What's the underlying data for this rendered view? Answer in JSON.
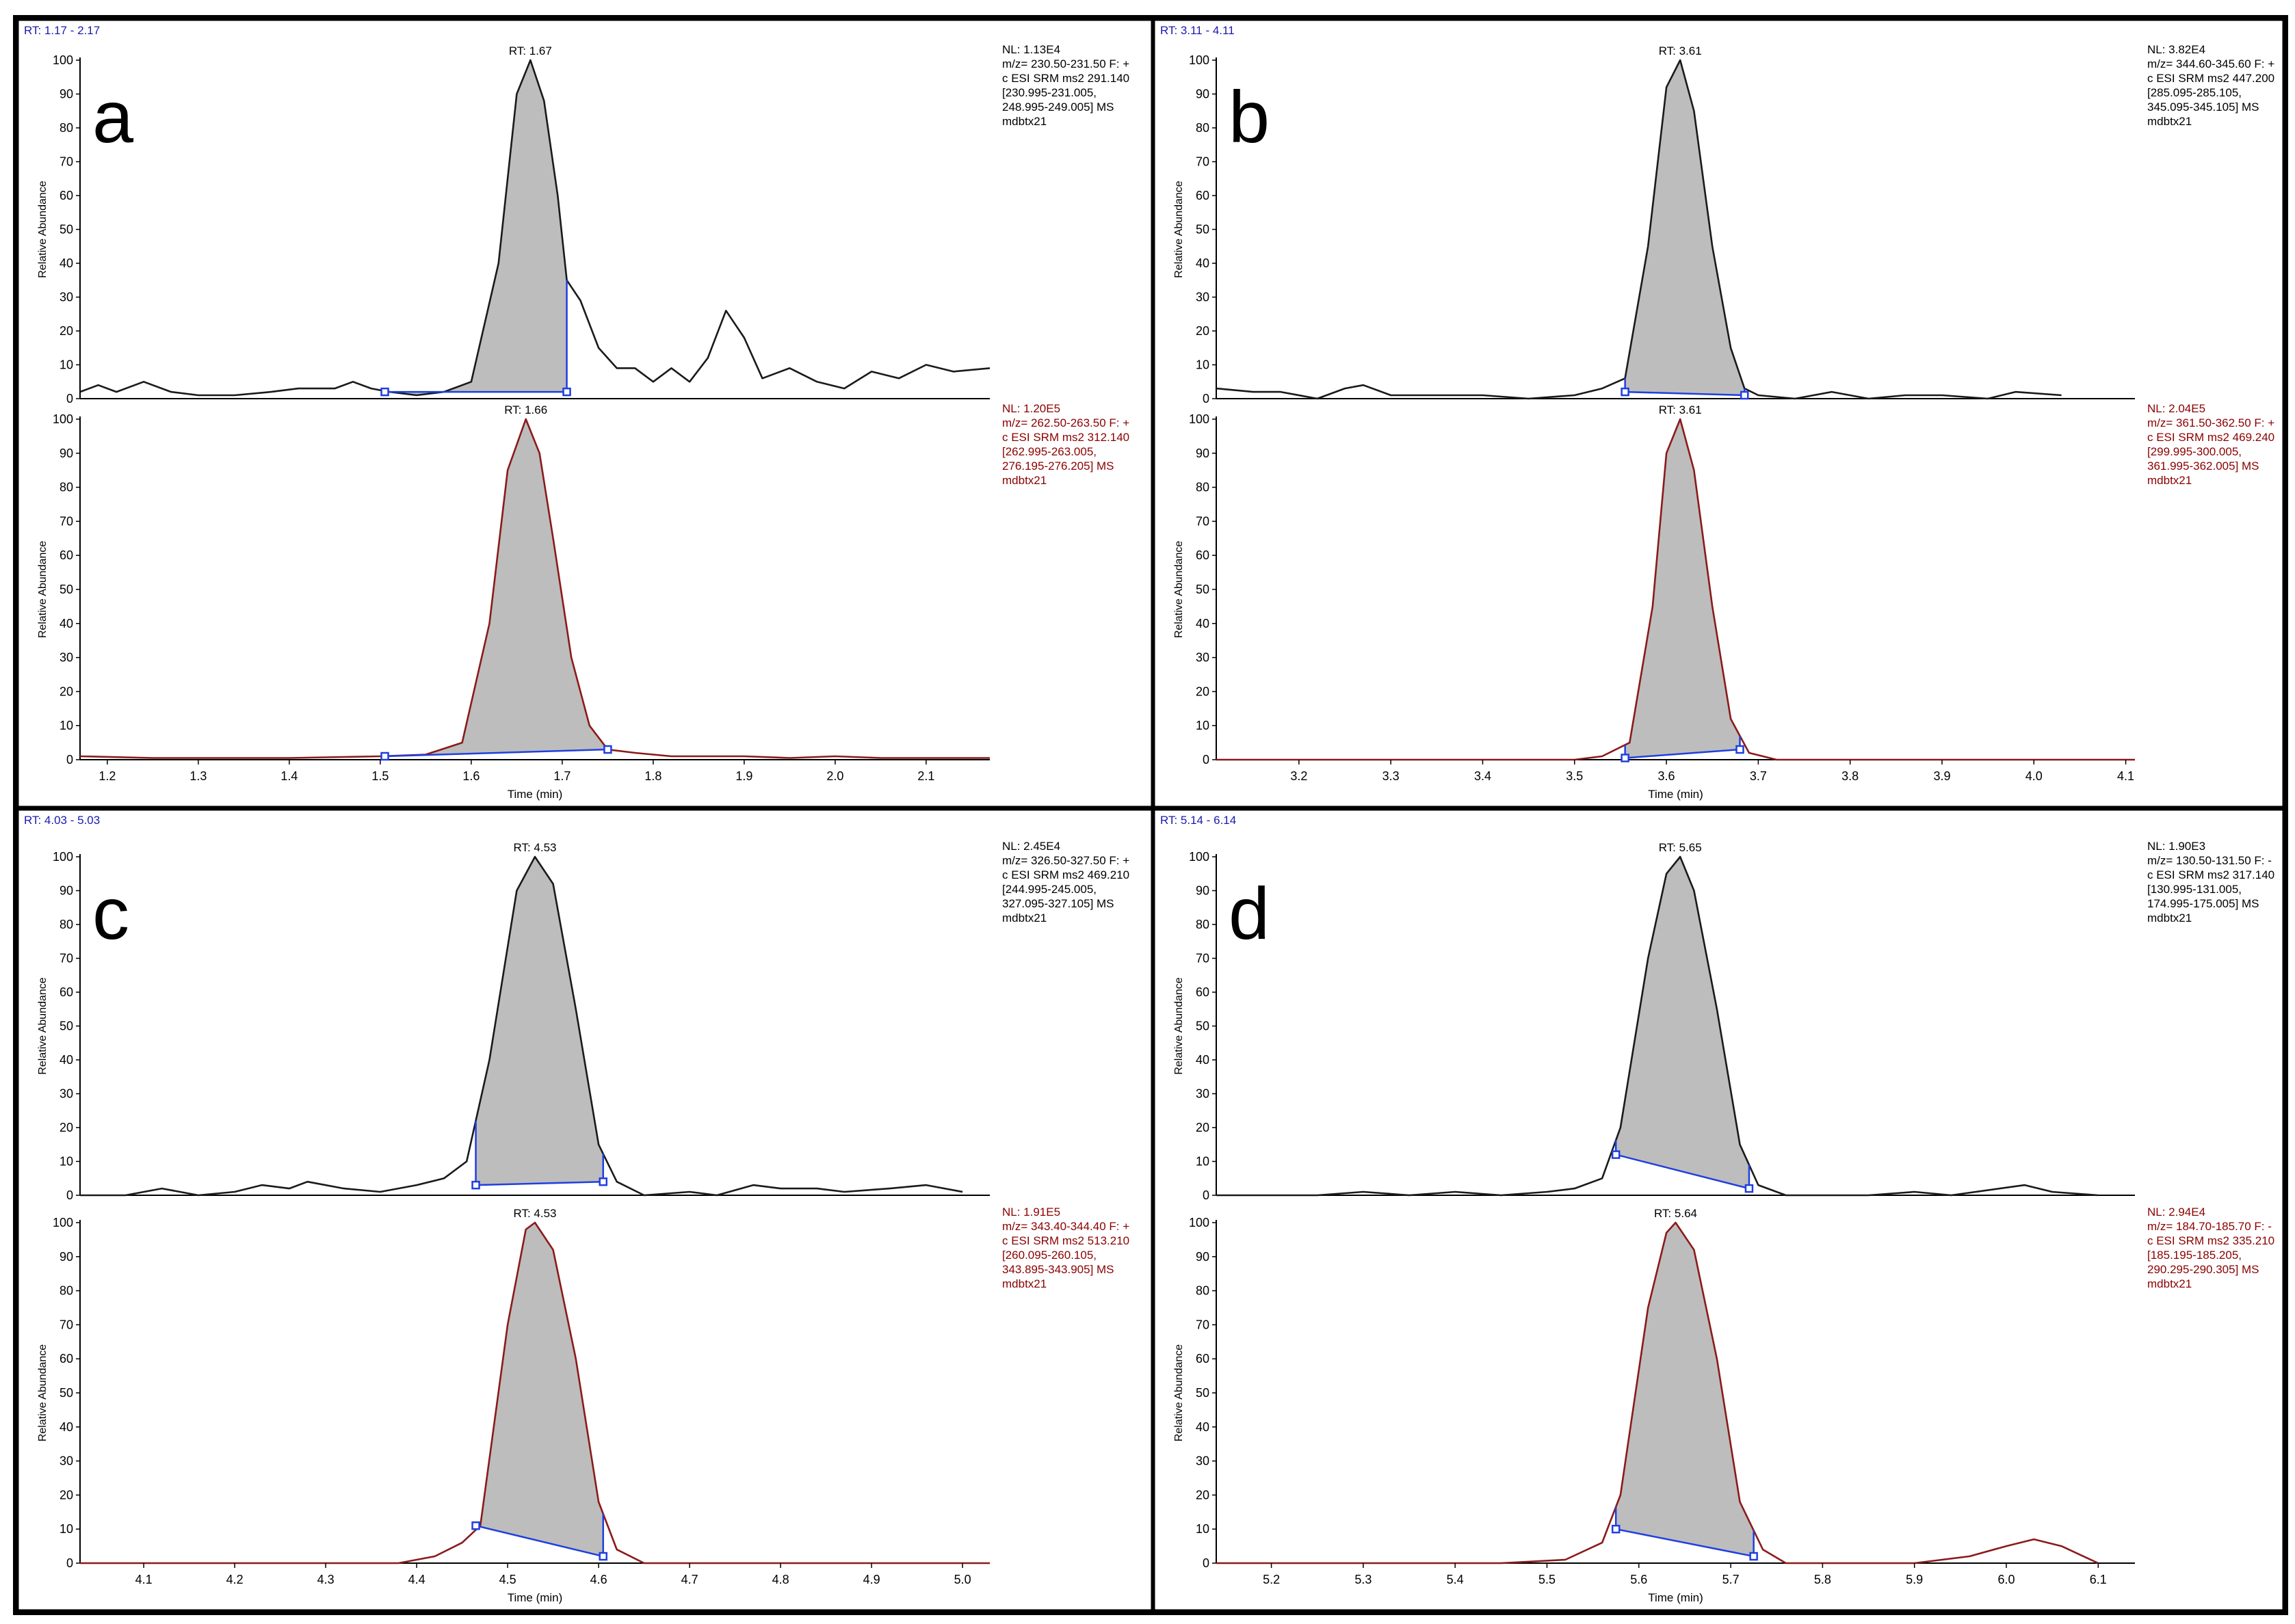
{
  "colors": {
    "black_trace": "#1a1a1a",
    "red_trace": "#8b1a1a",
    "red_text": "#8b0000",
    "blue_baseline": "#1f3fe0",
    "blue_text": "#1a1ab0",
    "fill": "#bdbdbd"
  },
  "chart_data": [
    {
      "type": "line",
      "letter": "a",
      "rt_range": "RT: 1.17 - 2.17",
      "xlabel": "Time (min)",
      "ylabel": "Relative Abundance",
      "xlim": [
        1.17,
        2.17
      ],
      "xticks": [
        "1.2",
        "1.3",
        "1.4",
        "1.5",
        "1.6",
        "1.7",
        "1.8",
        "1.9",
        "2.0",
        "2.1"
      ],
      "ylim": [
        0,
        100
      ],
      "yticks": [
        "0",
        "10",
        "20",
        "30",
        "40",
        "50",
        "60",
        "70",
        "80",
        "90",
        "100"
      ],
      "traces": [
        {
          "color": "black",
          "rt_label": "RT: 1.67",
          "info": [
            "NL: 1.13E4",
            "m/z= 230.50-231.50 F: +",
            "c ESI SRM ms2 291.140",
            "[230.995-231.005,",
            "248.995-249.005]  MS",
            "mdbtx21"
          ],
          "peak": {
            "rt": 1.665,
            "sigma": 0.036,
            "tail": 0.02,
            "integ_start": 1.505,
            "integ_end": 1.705,
            "base_start": 2,
            "base_end": 2
          },
          "points": [
            [
              1.17,
              2
            ],
            [
              1.19,
              4
            ],
            [
              1.21,
              2
            ],
            [
              1.24,
              5
            ],
            [
              1.27,
              2
            ],
            [
              1.3,
              1
            ],
            [
              1.34,
              1
            ],
            [
              1.38,
              2
            ],
            [
              1.41,
              3
            ],
            [
              1.45,
              3
            ],
            [
              1.47,
              5
            ],
            [
              1.49,
              3
            ],
            [
              1.51,
              2
            ],
            [
              1.54,
              1
            ],
            [
              1.57,
              2
            ],
            [
              1.6,
              5
            ],
            [
              1.63,
              40
            ],
            [
              1.65,
              90
            ],
            [
              1.665,
              100
            ],
            [
              1.68,
              88
            ],
            [
              1.695,
              60
            ],
            [
              1.705,
              35
            ],
            [
              1.72,
              29
            ],
            [
              1.74,
              15
            ],
            [
              1.76,
              9
            ],
            [
              1.78,
              9
            ],
            [
              1.8,
              5
            ],
            [
              1.82,
              9
            ],
            [
              1.84,
              5
            ],
            [
              1.86,
              12
            ],
            [
              1.88,
              26
            ],
            [
              1.9,
              18
            ],
            [
              1.92,
              6
            ],
            [
              1.95,
              9
            ],
            [
              1.98,
              5
            ],
            [
              2.01,
              3
            ],
            [
              2.04,
              8
            ],
            [
              2.07,
              6
            ],
            [
              2.1,
              10
            ],
            [
              2.13,
              8
            ],
            [
              2.17,
              9
            ]
          ]
        },
        {
          "color": "red",
          "rt_label": "RT: 1.66",
          "info": [
            "NL: 1.20E5",
            "m/z= 262.50-263.50 F: +",
            "c ESI SRM ms2 312.140",
            "[262.995-263.005,",
            "276.195-276.205]  MS",
            "mdbtx21"
          ],
          "peak": {
            "rt": 1.66,
            "sigma": 0.035,
            "tail": 0.025,
            "integ_start": 1.505,
            "integ_end": 1.75,
            "base_start": 1,
            "base_end": 3
          },
          "points": [
            [
              1.17,
              1
            ],
            [
              1.25,
              0.5
            ],
            [
              1.4,
              0.5
            ],
            [
              1.5,
              1
            ],
            [
              1.55,
              1.5
            ],
            [
              1.59,
              5
            ],
            [
              1.62,
              40
            ],
            [
              1.64,
              85
            ],
            [
              1.66,
              100
            ],
            [
              1.675,
              90
            ],
            [
              1.69,
              65
            ],
            [
              1.71,
              30
            ],
            [
              1.73,
              10
            ],
            [
              1.75,
              3
            ],
            [
              1.78,
              2
            ],
            [
              1.82,
              1
            ],
            [
              1.9,
              1
            ],
            [
              1.95,
              0.5
            ],
            [
              2.0,
              1
            ],
            [
              2.05,
              0.5
            ],
            [
              2.17,
              0.5
            ]
          ]
        }
      ]
    },
    {
      "type": "line",
      "letter": "b",
      "rt_range": "RT: 3.11 - 4.11",
      "xlabel": "Time (min)",
      "ylabel": "Relative Abundance",
      "xlim": [
        3.11,
        4.11
      ],
      "xticks": [
        "3.2",
        "3.3",
        "3.4",
        "3.5",
        "3.6",
        "3.7",
        "3.8",
        "3.9",
        "4.0",
        "4.1"
      ],
      "ylim": [
        0,
        100
      ],
      "yticks": [
        "0",
        "10",
        "20",
        "30",
        "40",
        "50",
        "60",
        "70",
        "80",
        "90",
        "100"
      ],
      "traces": [
        {
          "color": "black",
          "rt_label": "RT: 3.61",
          "info": [
            "NL: 3.82E4",
            "m/z= 344.60-345.60 F: +",
            "c ESI SRM ms2 447.200",
            "[285.095-285.105,",
            "345.095-345.105]  MS",
            "mdbtx21"
          ],
          "peak": {
            "rt": 3.615,
            "sigma": 0.025,
            "tail": 0.008,
            "integ_start": 3.555,
            "integ_end": 3.685,
            "base_start": 2,
            "base_end": 1
          },
          "points": [
            [
              3.11,
              3
            ],
            [
              3.15,
              2
            ],
            [
              3.18,
              2
            ],
            [
              3.22,
              0
            ],
            [
              3.25,
              3
            ],
            [
              3.27,
              4
            ],
            [
              3.3,
              1
            ],
            [
              3.35,
              1
            ],
            [
              3.4,
              1
            ],
            [
              3.45,
              0
            ],
            [
              3.5,
              1
            ],
            [
              3.53,
              3
            ],
            [
              3.555,
              6
            ],
            [
              3.58,
              45
            ],
            [
              3.6,
              92
            ],
            [
              3.615,
              100
            ],
            [
              3.63,
              85
            ],
            [
              3.65,
              45
            ],
            [
              3.67,
              15
            ],
            [
              3.685,
              3
            ],
            [
              3.7,
              1
            ],
            [
              3.74,
              0
            ],
            [
              3.78,
              2
            ],
            [
              3.82,
              0
            ],
            [
              3.86,
              1
            ],
            [
              3.9,
              1
            ],
            [
              3.95,
              0
            ],
            [
              3.98,
              2
            ],
            [
              4.03,
              1
            ]
          ]
        },
        {
          "color": "red",
          "rt_label": "RT: 3.61",
          "info": [
            "NL: 2.04E5",
            "m/z= 361.50-362.50 F: +",
            "c ESI SRM ms2 469.240",
            "[299.995-300.005,",
            "361.995-362.005]  MS",
            "mdbtx21"
          ],
          "peak": {
            "rt": 3.615,
            "sigma": 0.024,
            "tail": 0.005,
            "integ_start": 3.555,
            "integ_end": 3.68,
            "base_start": 0.5,
            "base_end": 3
          },
          "points": [
            [
              3.11,
              0
            ],
            [
              3.5,
              0
            ],
            [
              3.53,
              1
            ],
            [
              3.56,
              5
            ],
            [
              3.585,
              45
            ],
            [
              3.6,
              90
            ],
            [
              3.615,
              100
            ],
            [
              3.63,
              85
            ],
            [
              3.65,
              45
            ],
            [
              3.67,
              12
            ],
            [
              3.69,
              2
            ],
            [
              3.72,
              0
            ],
            [
              4.11,
              0
            ]
          ]
        }
      ]
    },
    {
      "type": "line",
      "letter": "c",
      "rt_range": "RT: 4.03 - 5.03",
      "xlabel": "Time (min)",
      "ylabel": "Relative Abundance",
      "xlim": [
        4.03,
        5.03
      ],
      "xticks": [
        "4.1",
        "4.2",
        "4.3",
        "4.4",
        "4.5",
        "4.6",
        "4.7",
        "4.8",
        "4.9",
        "5.0"
      ],
      "ylim": [
        0,
        100
      ],
      "yticks": [
        "0",
        "10",
        "20",
        "30",
        "40",
        "50",
        "60",
        "70",
        "80",
        "90",
        "100"
      ],
      "traces": [
        {
          "color": "black",
          "rt_label": "RT: 4.53",
          "info": [
            "NL: 2.45E4",
            "m/z= 326.50-327.50 F: +",
            "c ESI SRM ms2 469.210",
            "[244.995-245.005,",
            "327.095-327.105]  MS",
            "mdbtx21"
          ],
          "peak": {
            "rt": 4.53,
            "sigma": 0.032,
            "tail": 0.015,
            "integ_start": 4.465,
            "integ_end": 4.605,
            "base_start": 3,
            "base_end": 4
          },
          "points": [
            [
              4.03,
              0
            ],
            [
              4.08,
              0
            ],
            [
              4.12,
              2
            ],
            [
              4.16,
              0
            ],
            [
              4.2,
              1
            ],
            [
              4.23,
              3
            ],
            [
              4.26,
              2
            ],
            [
              4.28,
              4
            ],
            [
              4.32,
              2
            ],
            [
              4.36,
              1
            ],
            [
              4.4,
              3
            ],
            [
              4.43,
              5
            ],
            [
              4.455,
              10
            ],
            [
              4.48,
              40
            ],
            [
              4.51,
              90
            ],
            [
              4.53,
              100
            ],
            [
              4.55,
              92
            ],
            [
              4.575,
              55
            ],
            [
              4.6,
              15
            ],
            [
              4.62,
              4
            ],
            [
              4.65,
              0
            ],
            [
              4.7,
              1
            ],
            [
              4.73,
              0
            ],
            [
              4.77,
              3
            ],
            [
              4.8,
              2
            ],
            [
              4.84,
              2
            ],
            [
              4.87,
              1
            ],
            [
              4.92,
              2
            ],
            [
              4.96,
              3
            ],
            [
              5.0,
              1
            ]
          ]
        },
        {
          "color": "red",
          "rt_label": "RT: 4.53",
          "info": [
            "NL: 1.91E5",
            "m/z= 343.40-344.40 F: +",
            "c ESI SRM ms2 513.210",
            "[260.095-260.105,",
            "343.895-343.905]  MS",
            "mdbtx21"
          ],
          "peak": {
            "rt": 4.53,
            "sigma": 0.033,
            "tail": 0.012,
            "integ_start": 4.465,
            "integ_end": 4.605,
            "base_start": 11,
            "base_end": 2
          },
          "points": [
            [
              4.03,
              0
            ],
            [
              4.38,
              0
            ],
            [
              4.42,
              2
            ],
            [
              4.45,
              6
            ],
            [
              4.47,
              11
            ],
            [
              4.5,
              70
            ],
            [
              4.52,
              98
            ],
            [
              4.53,
              100
            ],
            [
              4.55,
              92
            ],
            [
              4.575,
              60
            ],
            [
              4.6,
              18
            ],
            [
              4.62,
              4
            ],
            [
              4.65,
              0
            ],
            [
              5.03,
              0
            ]
          ]
        }
      ]
    },
    {
      "type": "line",
      "letter": "d",
      "rt_range": "RT: 5.14 - 6.14",
      "xlabel": "Time (min)",
      "ylabel": "Relative Abundance",
      "xlim": [
        5.14,
        6.14
      ],
      "xticks": [
        "5.2",
        "5.3",
        "5.4",
        "5.5",
        "5.6",
        "5.7",
        "5.8",
        "5.9",
        "6.0",
        "6.1"
      ],
      "ylim": [
        0,
        100
      ],
      "yticks": [
        "0",
        "10",
        "20",
        "30",
        "40",
        "50",
        "60",
        "70",
        "80",
        "90",
        "100"
      ],
      "traces": [
        {
          "color": "black",
          "rt_label": "RT: 5.65",
          "info": [
            "NL: 1.90E3",
            "m/z= 130.50-131.50 F: -",
            "c ESI SRM ms2 317.140",
            "[130.995-131.005,",
            "174.995-175.005]  MS",
            "mdbtx21"
          ],
          "peak": {
            "rt": 5.645,
            "sigma": 0.03,
            "tail": 0.012,
            "integ_start": 5.575,
            "integ_end": 5.72,
            "base_start": 12,
            "base_end": 2
          },
          "points": [
            [
              5.14,
              0
            ],
            [
              5.25,
              0
            ],
            [
              5.3,
              1
            ],
            [
              5.35,
              0
            ],
            [
              5.4,
              1
            ],
            [
              5.45,
              0
            ],
            [
              5.5,
              1
            ],
            [
              5.53,
              2
            ],
            [
              5.56,
              5
            ],
            [
              5.58,
              20
            ],
            [
              5.61,
              70
            ],
            [
              5.63,
              95
            ],
            [
              5.645,
              100
            ],
            [
              5.66,
              90
            ],
            [
              5.685,
              55
            ],
            [
              5.71,
              15
            ],
            [
              5.73,
              3
            ],
            [
              5.76,
              0
            ],
            [
              5.85,
              0
            ],
            [
              5.9,
              1
            ],
            [
              5.94,
              0
            ],
            [
              6.02,
              3
            ],
            [
              6.05,
              1
            ],
            [
              6.1,
              0
            ]
          ]
        },
        {
          "color": "red",
          "rt_label": "RT: 5.64",
          "info": [
            "NL: 2.94E4",
            "m/z= 184.70-185.70 F: -",
            "c ESI SRM ms2 335.210",
            "[185.195-185.205,",
            "290.295-290.305]  MS",
            "mdbtx21"
          ],
          "peak": {
            "rt": 5.64,
            "sigma": 0.036,
            "tail": 0.014,
            "integ_start": 5.575,
            "integ_end": 5.725,
            "base_start": 10,
            "base_end": 2
          },
          "points": [
            [
              5.14,
              0
            ],
            [
              5.45,
              0
            ],
            [
              5.52,
              1
            ],
            [
              5.56,
              6
            ],
            [
              5.58,
              20
            ],
            [
              5.61,
              75
            ],
            [
              5.63,
              97
            ],
            [
              5.64,
              100
            ],
            [
              5.66,
              92
            ],
            [
              5.685,
              60
            ],
            [
              5.71,
              18
            ],
            [
              5.735,
              4
            ],
            [
              5.76,
              0
            ],
            [
              5.9,
              0
            ],
            [
              5.96,
              2
            ],
            [
              6.0,
              5
            ],
            [
              6.03,
              7
            ],
            [
              6.06,
              5
            ],
            [
              6.1,
              0
            ]
          ]
        }
      ]
    }
  ]
}
